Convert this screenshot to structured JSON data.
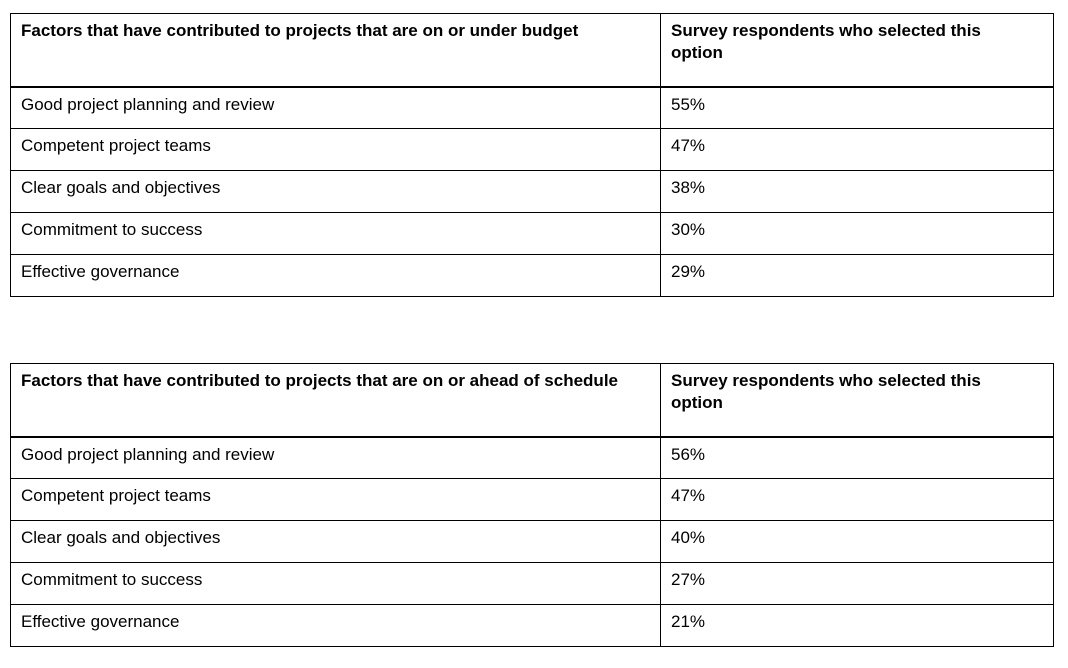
{
  "tables": [
    {
      "id": "budget",
      "header": {
        "factor_label": "Factors that have contributed to projects that are on or under budget",
        "value_label": "Survey respondents who selected this option"
      },
      "rows": [
        {
          "factor": "Good project planning and review",
          "value": "55%"
        },
        {
          "factor": "Competent project teams",
          "value": "47%"
        },
        {
          "factor": "Clear goals and objectives",
          "value": "38%"
        },
        {
          "factor": "Commitment to success",
          "value": "30%"
        },
        {
          "factor": "Effective governance",
          "value": "29%"
        }
      ]
    },
    {
      "id": "schedule",
      "header": {
        "factor_label": "Factors that have contributed to projects that are on or ahead of schedule",
        "value_label": "Survey respondents who selected this option"
      },
      "rows": [
        {
          "factor": "Good project planning and review",
          "value": "56%"
        },
        {
          "factor": "Competent project teams",
          "value": "47%"
        },
        {
          "factor": "Clear goals and objectives",
          "value": "40%"
        },
        {
          "factor": "Commitment to success",
          "value": "27%"
        },
        {
          "factor": "Effective governance",
          "value": "21%"
        }
      ]
    }
  ],
  "chart_data": [
    {
      "type": "table",
      "title": "Factors that have contributed to projects that are on or under budget",
      "columns": [
        "Factors that have contributed to projects that are on or under budget",
        "Survey respondents who selected this option"
      ],
      "categories": [
        "Good project planning and review",
        "Competent project teams",
        "Clear goals and objectives",
        "Commitment to success",
        "Effective governance"
      ],
      "values": [
        55,
        47,
        38,
        30,
        29
      ],
      "unit": "%"
    },
    {
      "type": "table",
      "title": "Factors that have contributed to projects that are on or ahead of schedule",
      "columns": [
        "Factors that have contributed to projects that are on or ahead of schedule",
        "Survey respondents who selected this option"
      ],
      "categories": [
        "Good project planning and review",
        "Competent project teams",
        "Clear goals and objectives",
        "Commitment to success",
        "Effective governance"
      ],
      "values": [
        56,
        47,
        40,
        27,
        21
      ],
      "unit": "%"
    }
  ],
  "colors": {
    "border": "#000000",
    "text": "#000000",
    "background": "#ffffff"
  }
}
